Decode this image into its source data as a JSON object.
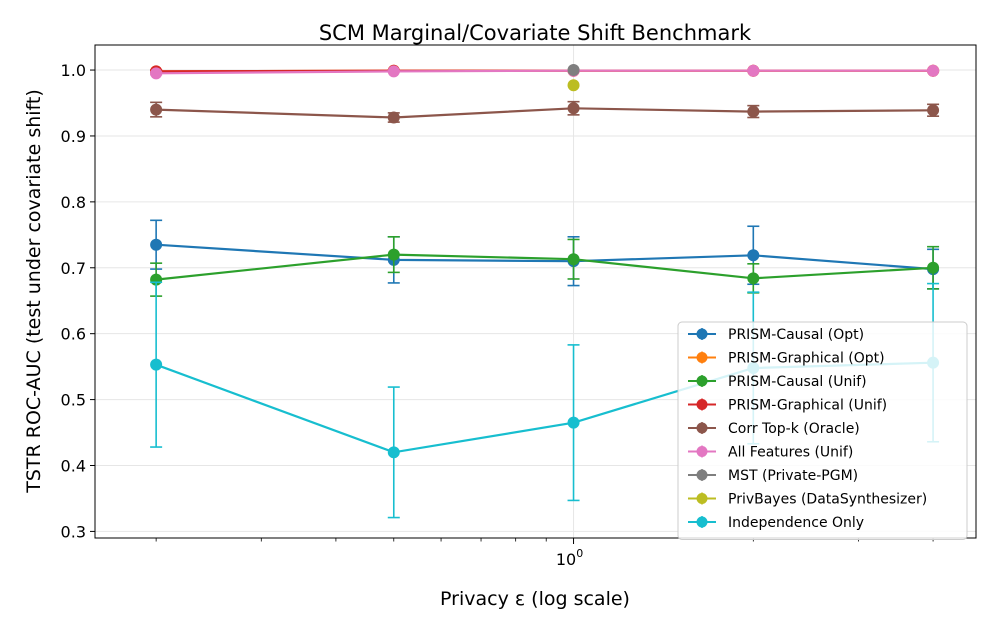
{
  "chart_data": {
    "type": "line",
    "title": "SCM Marginal/Covariate Shift Benchmark",
    "xlabel": "Privacy ε (log scale)",
    "ylabel": "TSTR ROC-AUC (test under covariate shift)",
    "xscale": "log",
    "x": [
      0.2,
      0.5,
      1.0,
      2.0,
      4.0
    ],
    "xlim": [
      0.158,
      4.72
    ],
    "ylim": [
      0.29,
      1.038
    ],
    "yticks": [
      0.3,
      0.4,
      0.5,
      0.6,
      0.7,
      0.8,
      0.9,
      1.0
    ],
    "ytick_labels": [
      "0.3",
      "0.4",
      "0.5",
      "0.6",
      "0.7",
      "0.8",
      "0.9",
      "1.0"
    ],
    "xtick_major": [
      {
        "value": 1.0,
        "base": "10",
        "exp": "0"
      }
    ],
    "xtick_minor": [
      0.2,
      0.3,
      0.4,
      0.5,
      0.6,
      0.7,
      0.8,
      0.9,
      2.0,
      3.0,
      4.0
    ],
    "grid": true,
    "legend_position": "lower-right",
    "series": [
      {
        "name": "PRISM-Causal (Opt)",
        "color": "#1f77b4",
        "x": [
          0.2,
          0.5,
          1.0,
          2.0,
          4.0
        ],
        "values": [
          0.735,
          0.712,
          0.71,
          0.719,
          0.698
        ],
        "errors": [
          0.037,
          0.035,
          0.037,
          0.044,
          0.03
        ]
      },
      {
        "name": "PRISM-Graphical (Opt)",
        "color": "#ff7f0e",
        "x": [
          0.2,
          0.5,
          1.0,
          2.0,
          4.0
        ],
        "values": [
          0.998,
          0.999,
          0.999,
          0.999,
          0.999
        ],
        "errors": [
          0.002,
          0.001,
          0.001,
          0.001,
          0.001
        ]
      },
      {
        "name": "PRISM-Causal (Unif)",
        "color": "#2ca02c",
        "x": [
          0.2,
          0.5,
          1.0,
          2.0,
          4.0
        ],
        "values": [
          0.682,
          0.72,
          0.713,
          0.684,
          0.7
        ],
        "errors": [
          0.025,
          0.027,
          0.03,
          0.022,
          0.032
        ]
      },
      {
        "name": "PRISM-Graphical (Unif)",
        "color": "#d62728",
        "x": [
          0.2,
          0.5,
          1.0,
          2.0,
          4.0
        ],
        "values": [
          0.998,
          0.999,
          0.999,
          0.999,
          0.999
        ],
        "errors": [
          0.002,
          0.001,
          0.001,
          0.001,
          0.001
        ]
      },
      {
        "name": "Corr Top-k (Oracle)",
        "color": "#8c564b",
        "x": [
          0.2,
          0.5,
          1.0,
          2.0,
          4.0
        ],
        "values": [
          0.94,
          0.928,
          0.942,
          0.937,
          0.939
        ],
        "errors": [
          0.011,
          0.007,
          0.01,
          0.009,
          0.009
        ]
      },
      {
        "name": "All Features (Unif)",
        "color": "#e377c2",
        "x": [
          0.2,
          0.5,
          1.0,
          2.0,
          4.0
        ],
        "values": [
          0.995,
          0.998,
          0.999,
          0.999,
          0.999
        ],
        "errors": [
          0.002,
          0.001,
          0.001,
          0.001,
          0.001
        ]
      },
      {
        "name": "MST (Private-PGM)",
        "color": "#7f7f7f",
        "x": [
          1.0
        ],
        "values": [
          1.0
        ],
        "errors": [
          0.0
        ]
      },
      {
        "name": "PrivBayes (DataSynthesizer)",
        "color": "#bcbd22",
        "x": [
          1.0
        ],
        "values": [
          0.977
        ],
        "errors": [
          0.0
        ]
      },
      {
        "name": "Independence Only",
        "color": "#17becf",
        "x": [
          0.2,
          0.5,
          1.0,
          2.0,
          4.0
        ],
        "values": [
          0.553,
          0.42,
          0.465,
          0.548,
          0.556
        ],
        "errors": [
          0.125,
          0.099,
          0.118,
          0.115,
          0.12
        ]
      }
    ]
  }
}
